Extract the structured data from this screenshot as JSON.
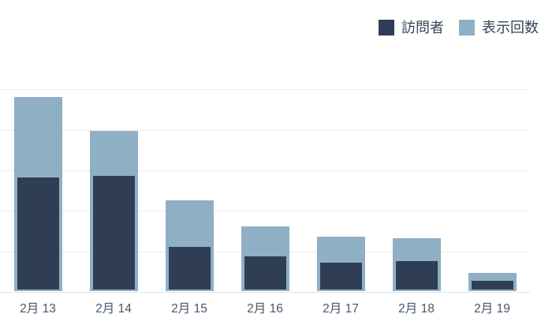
{
  "legend": {
    "items": [
      {
        "key": "visitors",
        "label": "訪問者",
        "color": "#2F3E55"
      },
      {
        "key": "impressions",
        "label": "表示回数",
        "color": "#8FAFC5"
      }
    ]
  },
  "chart_data": {
    "type": "bar",
    "subtype": "overlapped-bars",
    "title": "",
    "xlabel": "",
    "ylabel": "",
    "categories": [
      "2月 13",
      "2月 14",
      "2月 15",
      "2月 16",
      "2月 17",
      "2月 18",
      "2月 19"
    ],
    "series": [
      {
        "key": "impressions",
        "name": "表示回数",
        "color": "#8FAFC5",
        "values": [
          96,
          79,
          45,
          32,
          27,
          26,
          9
        ]
      },
      {
        "key": "visitors",
        "name": "訪問者",
        "color": "#2F3E55",
        "values": [
          56,
          57,
          22,
          17,
          14,
          15,
          5
        ]
      }
    ],
    "ylim": [
      0,
      100
    ],
    "gridline_step": 20,
    "grid": true,
    "y_axis_labels_visible": false,
    "legend_position": "top-right",
    "colors": {
      "gridline": "#ececec",
      "axis_line": "#e2e4e6",
      "x_tick_text": "#4a5869",
      "legend_text": "#36445a"
    }
  }
}
